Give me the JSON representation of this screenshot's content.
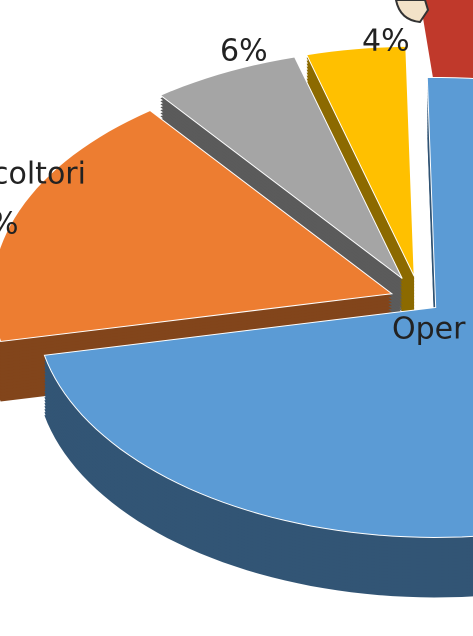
{
  "chart_data": {
    "type": "pie",
    "categories": [
      "Oper",
      "coltori",
      null,
      null
    ],
    "values": [
      72,
      18,
      6,
      4
    ],
    "value_labels": [
      null,
      "%",
      "6%",
      "4%"
    ],
    "colors": [
      "#5b9bd5",
      "#ed7d31",
      "#a5a5a5",
      "#ffc000"
    ]
  }
}
